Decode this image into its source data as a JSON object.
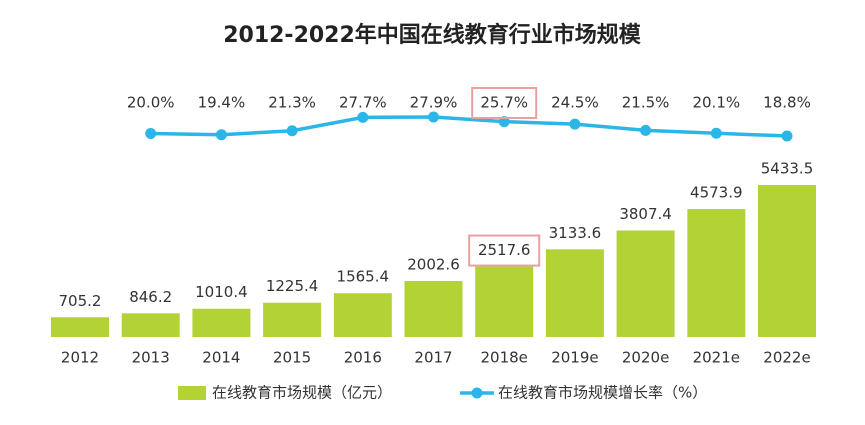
{
  "chart_data": {
    "type": "combo",
    "title": "2012-2022年中国在线教育行业市场规模",
    "categories": [
      "2012",
      "2013",
      "2014",
      "2015",
      "2016",
      "2017",
      "2018e",
      "2019e",
      "2020e",
      "2021e",
      "2022e"
    ],
    "series": [
      {
        "name": "在线教育市场规模（亿元）",
        "type": "bar",
        "color": "#b2d235",
        "values": [
          705.2,
          846.2,
          1010.4,
          1225.4,
          1565.4,
          2002.6,
          2517.6,
          3133.6,
          3807.4,
          4573.9,
          5433.5
        ]
      },
      {
        "name": "在线教育市场规模增长率（%）",
        "type": "line",
        "color": "#2ab7e8",
        "values": [
          null,
          20.0,
          19.4,
          21.3,
          27.7,
          27.9,
          25.7,
          24.5,
          21.5,
          20.1,
          18.8
        ],
        "value_labels": [
          null,
          "20.0%",
          "19.4%",
          "21.3%",
          "27.7%",
          "27.9%",
          "25.7%",
          "24.5%",
          "21.5%",
          "20.1%",
          "18.8%"
        ]
      }
    ],
    "legend": "bottom"
  }
}
